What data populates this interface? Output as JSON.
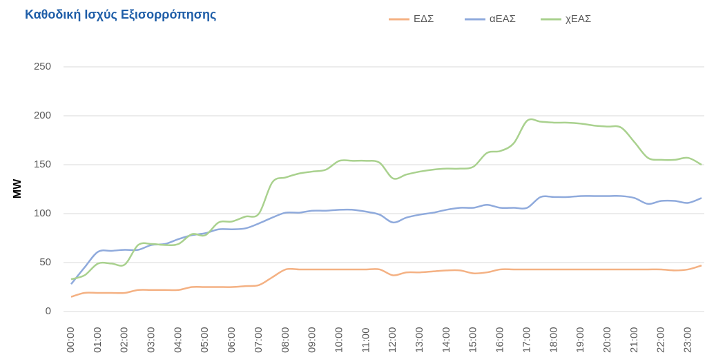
{
  "chart_data": {
    "type": "line",
    "title": "Καθοδική Ισχύς Εξισορρόπησης",
    "y_label": "MW",
    "categories": [
      "00:00",
      null,
      "01:00",
      null,
      "02:00",
      null,
      "03:00",
      null,
      "04:00",
      null,
      "05:00",
      null,
      "06:00",
      null,
      "07:00",
      null,
      "08:00",
      null,
      "09:00",
      null,
      "10:00",
      null,
      "11:00",
      null,
      "12:00",
      null,
      "13:00",
      null,
      "14:00",
      null,
      "15:00",
      null,
      "16:00",
      null,
      "17:00",
      null,
      "18:00",
      null,
      "19:00",
      null,
      "20:00",
      null,
      "21:00",
      null,
      "22:00",
      null,
      "23:00",
      null
    ],
    "series": [
      {
        "name": "ΕΔΣ",
        "color": "#f4b183",
        "values": [
          15,
          19,
          19,
          19,
          19,
          22,
          22,
          22,
          22,
          25,
          25,
          25,
          25,
          26,
          27,
          35,
          43,
          43,
          43,
          43,
          43,
          43,
          43,
          43,
          37,
          40,
          40,
          41,
          42,
          42,
          39,
          40,
          43,
          43,
          43,
          43,
          43,
          43,
          43,
          43,
          43,
          43,
          43,
          43,
          43,
          42,
          43,
          47
        ]
      },
      {
        "name": "αΕΑΣ",
        "color": "#8faadc",
        "values": [
          28,
          45,
          61,
          62,
          63,
          63,
          68,
          69,
          74,
          78,
          80,
          84,
          84,
          85,
          90,
          96,
          101,
          101,
          103,
          103,
          104,
          104,
          102,
          99,
          91,
          96,
          99,
          101,
          104,
          106,
          106,
          109,
          106,
          106,
          106,
          117,
          117,
          117,
          118,
          118,
          118,
          118,
          116,
          110,
          113,
          113,
          111,
          116
        ]
      },
      {
        "name": "χΕΑΣ",
        "color": "#a9d18e",
        "values": [
          33,
          37,
          49,
          49,
          48,
          68,
          69,
          68,
          69,
          79,
          78,
          91,
          92,
          97,
          100,
          132,
          137,
          141,
          143,
          145,
          154,
          154,
          154,
          152,
          136,
          140,
          143,
          145,
          146,
          146,
          148,
          162,
          164,
          172,
          195,
          194,
          193,
          193,
          192,
          190,
          189,
          188,
          173,
          157,
          155,
          155,
          157,
          150
        ]
      }
    ],
    "ylim": [
      0,
      250
    ],
    "yticks": [
      0,
      50,
      100,
      150,
      200,
      250
    ],
    "grid": true
  }
}
